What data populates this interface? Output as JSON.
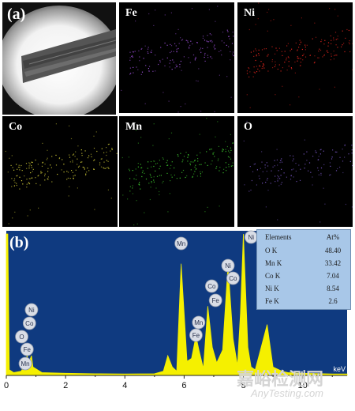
{
  "panel_a": {
    "label": "(a)",
    "tiles": [
      {
        "label": "Fe",
        "color": "#9a4fd6"
      },
      {
        "label": "Ni",
        "color": "#e0241c"
      },
      {
        "label": "Co",
        "color": "#d8d23a"
      },
      {
        "label": "Mn",
        "color": "#3ecb2e"
      },
      {
        "label": "O",
        "color": "#7a58c8"
      }
    ]
  },
  "panel_b": {
    "label": "(b)",
    "unit": "keV",
    "background": "#0f3a80",
    "spectrum_color": "#f5f000",
    "table": {
      "header": [
        "Elements",
        "At%"
      ],
      "rows": [
        [
          "O K",
          "48.40"
        ],
        [
          "Mn K",
          "33.42"
        ],
        [
          "Co K",
          "7.04"
        ],
        [
          "Ni K",
          "8.54"
        ],
        [
          "Fe K",
          "2.6"
        ]
      ]
    }
  },
  "watermark": {
    "line1": "嘉峪检测网",
    "line2": "AnyTesting.com"
  },
  "chart_data": {
    "type": "line",
    "xlabel": "keV",
    "xlim": [
      0,
      11.5
    ],
    "x_ticks": [
      "0",
      "2",
      "4",
      "6",
      "8",
      "10"
    ],
    "series": [
      {
        "values_x": [
          0.0,
          0.05,
          0.1,
          0.25,
          0.5,
          0.64,
          0.7,
          0.76,
          0.85,
          0.9,
          1.2,
          2.0,
          3.0,
          4.0,
          5.0,
          5.3,
          5.45,
          5.6,
          5.75,
          5.9,
          6.1,
          6.25,
          6.4,
          6.5,
          6.65,
          6.8,
          6.95,
          7.1,
          7.3,
          7.48,
          7.65,
          7.8,
          7.9,
          8.0,
          8.15,
          8.26,
          8.4,
          8.6,
          8.8,
          9.0,
          9.3,
          9.5,
          10.0,
          11.0,
          11.5
        ],
        "values_y": [
          100,
          100,
          4,
          2,
          3,
          8,
          14,
          9,
          14,
          6,
          2,
          1.5,
          1.2,
          1,
          1.2,
          3,
          14,
          6,
          3,
          79,
          10,
          12,
          28,
          18,
          5,
          49,
          20,
          9,
          18,
          78,
          26,
          7,
          44,
          100,
          20,
          6,
          4,
          20,
          36,
          6,
          3,
          2,
          1.5,
          1,
          1
        ]
      }
    ],
    "peak_labels": [
      {
        "element": "Mn",
        "x": 5.9
      },
      {
        "element": "Ni",
        "x": 8.26
      },
      {
        "element": "Ni",
        "x": 7.48
      },
      {
        "element": "Co",
        "x": 7.65
      },
      {
        "element": "Co",
        "x": 6.93
      },
      {
        "element": "Fe",
        "x": 7.06
      },
      {
        "element": "Mn",
        "x": 6.49
      },
      {
        "element": "Fe",
        "x": 6.4
      },
      {
        "element": "Ni",
        "x": 0.85
      },
      {
        "element": "Co",
        "x": 0.78
      },
      {
        "element": "O",
        "x": 0.52
      },
      {
        "element": "Fe",
        "x": 0.7
      },
      {
        "element": "Mn",
        "x": 0.64
      }
    ]
  }
}
